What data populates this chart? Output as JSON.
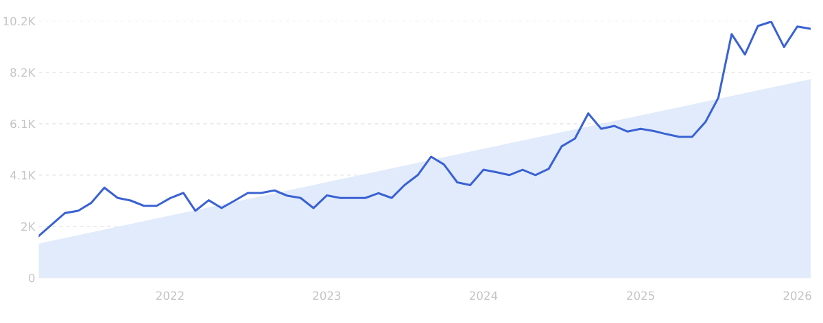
{
  "chart_data": {
    "type": "line",
    "x": [
      "2021-03",
      "2021-04",
      "2021-05",
      "2021-06",
      "2021-07",
      "2021-08",
      "2021-09",
      "2021-10",
      "2021-11",
      "2021-12",
      "2022-01",
      "2022-02",
      "2022-03",
      "2022-04",
      "2022-05",
      "2022-06",
      "2022-07",
      "2022-08",
      "2022-09",
      "2022-10",
      "2022-11",
      "2022-12",
      "2023-01",
      "2023-02",
      "2023-03",
      "2023-04",
      "2023-05",
      "2023-06",
      "2023-07",
      "2023-08",
      "2023-09",
      "2023-10",
      "2023-11",
      "2023-12",
      "2024-01",
      "2024-02",
      "2024-03",
      "2024-04",
      "2024-05",
      "2024-06",
      "2024-07",
      "2024-08",
      "2024-09",
      "2024-10",
      "2024-11",
      "2024-12",
      "2025-01",
      "2025-02",
      "2025-03",
      "2025-04",
      "2025-05",
      "2025-06",
      "2025-07",
      "2025-08",
      "2025-09",
      "2025-10",
      "2025-11",
      "2025-12",
      "2026-01",
      "2026-02"
    ],
    "series": [
      {
        "type": "area",
        "color": "#e1ebfb",
        "x": [
          "2021-03",
          "2026-02"
        ],
        "values": [
          1360,
          7890
        ]
      },
      {
        "color": "#3a62d4",
        "line_style": "solid",
        "values": [
          1660,
          2120,
          2570,
          2660,
          2970,
          3580,
          3170,
          3070,
          2860,
          2860,
          3160,
          3370,
          2660,
          3080,
          2770,
          3070,
          3370,
          3370,
          3470,
          3260,
          3170,
          2770,
          3270,
          3170,
          3170,
          3170,
          3360,
          3170,
          3680,
          4080,
          4810,
          4500,
          3790,
          3680,
          4290,
          4190,
          4080,
          4290,
          4080,
          4330,
          5220,
          5530,
          6530,
          5920,
          6030,
          5810,
          5920,
          5830,
          5710,
          5600,
          5600,
          6190,
          7150,
          9680,
          8870,
          10000,
          10170,
          9170,
          9980,
          9890
        ]
      }
    ],
    "xlim": [
      "2021-03",
      "2026-02"
    ],
    "xticks": [
      "2022",
      "2023",
      "2024",
      "2025",
      "2026"
    ],
    "ylim": [
      0,
      10200
    ],
    "yticks": [
      {
        "value": 0,
        "label": "0"
      },
      {
        "value": 2040,
        "label": "2K"
      },
      {
        "value": 4080,
        "label": "4.1K"
      },
      {
        "value": 6120,
        "label": "6.1K"
      },
      {
        "value": 8160,
        "label": "8.2K"
      },
      {
        "value": 10200,
        "label": "10.2K"
      }
    ],
    "grid": "y",
    "legend": false,
    "marker": "none"
  }
}
